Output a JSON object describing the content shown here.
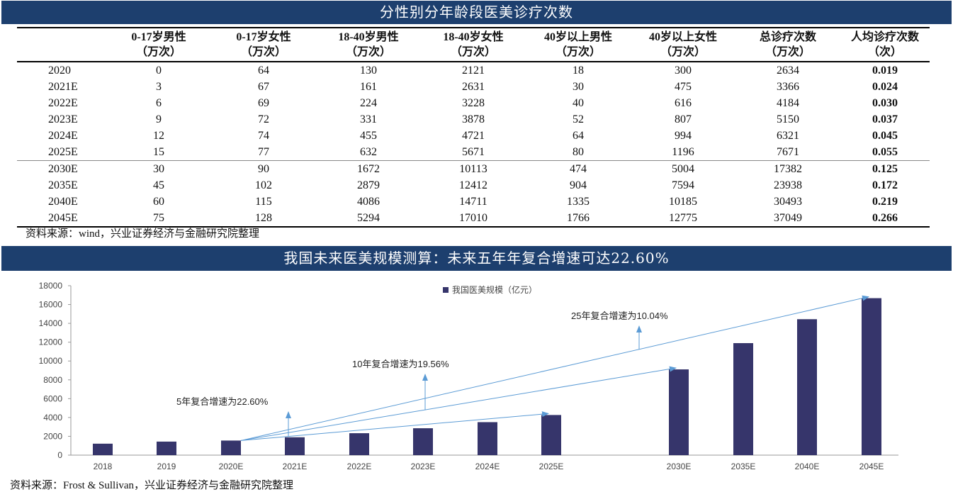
{
  "section1": {
    "title": "分性别分年龄段医美诊疗次数",
    "headers": [
      {
        "l1": "",
        "l2": ""
      },
      {
        "l1": "0-17岁男性",
        "l2": "（万次）"
      },
      {
        "l1": "0-17岁女性",
        "l2": "（万次）"
      },
      {
        "l1": "18-40岁男性",
        "l2": "（万次）"
      },
      {
        "l1": "18-40岁女性",
        "l2": "（万次）"
      },
      {
        "l1": "40岁以上男性",
        "l2": "（万次）"
      },
      {
        "l1": "40岁以上女性",
        "l2": "（万次）"
      },
      {
        "l1": "总诊疗次数",
        "l2": "（万次）"
      },
      {
        "l1": "人均诊疗次数",
        "l2": "（次）"
      }
    ],
    "rows": [
      [
        "2020",
        "0",
        "64",
        "130",
        "2121",
        "18",
        "300",
        "2634",
        "0.019"
      ],
      [
        "2021E",
        "3",
        "67",
        "161",
        "2631",
        "30",
        "475",
        "3366",
        "0.024"
      ],
      [
        "2022E",
        "6",
        "69",
        "224",
        "3228",
        "40",
        "616",
        "4184",
        "0.030"
      ],
      [
        "2023E",
        "9",
        "72",
        "331",
        "3878",
        "52",
        "807",
        "5150",
        "0.037"
      ],
      [
        "2024E",
        "12",
        "74",
        "455",
        "4721",
        "64",
        "994",
        "6321",
        "0.045"
      ],
      [
        "2025E",
        "15",
        "77",
        "632",
        "5671",
        "80",
        "1196",
        "7671",
        "0.055"
      ],
      [
        "2030E",
        "30",
        "90",
        "1672",
        "10113",
        "474",
        "5004",
        "17382",
        "0.125"
      ],
      [
        "2035E",
        "45",
        "102",
        "2879",
        "12412",
        "904",
        "7594",
        "23938",
        "0.172"
      ],
      [
        "2040E",
        "60",
        "115",
        "4086",
        "14711",
        "1335",
        "10185",
        "30493",
        "0.219"
      ],
      [
        "2045E",
        "75",
        "128",
        "5294",
        "17010",
        "1766",
        "12775",
        "37049",
        "0.266"
      ]
    ],
    "source": "资料来源：wind，兴业证券经济与金融研究院整理"
  },
  "section2": {
    "title": "我国未来医美规模测算：未来五年年复合增速可达22.60%",
    "source": "资料来源：Frost & Sullivan，兴业证券经济与金融研究院整理"
  },
  "chart_data": {
    "type": "bar",
    "categories": [
      "2018",
      "2019",
      "2020E",
      "2021E",
      "2022E",
      "2023E",
      "2024E",
      "2025E",
      "2030E",
      "2035E",
      "2040E",
      "2045E"
    ],
    "series": [
      {
        "name": "我国医美规模（亿元）",
        "values": [
          1217,
          1439,
          1549,
          1900,
          2330,
          2857,
          3504,
          4264,
          9109,
          11900,
          14441,
          16677
        ]
      }
    ],
    "ylim": [
      0,
      18000
    ],
    "yticks": [
      0,
      2000,
      4000,
      6000,
      8000,
      10000,
      12000,
      14000,
      16000,
      18000
    ],
    "legend": "top-center",
    "bar_color": "#36356b",
    "arrow_color": "#5b9bd5",
    "annotations": [
      {
        "text": "5年复合增速为22.60%",
        "from": "2020E",
        "to": "2025E"
      },
      {
        "text": "10年复合增速为19.56%",
        "from": "2020E",
        "to": "2030E"
      },
      {
        "text": "25年复合增速为10.04%",
        "from": "2020E",
        "to": "2045E"
      }
    ]
  }
}
